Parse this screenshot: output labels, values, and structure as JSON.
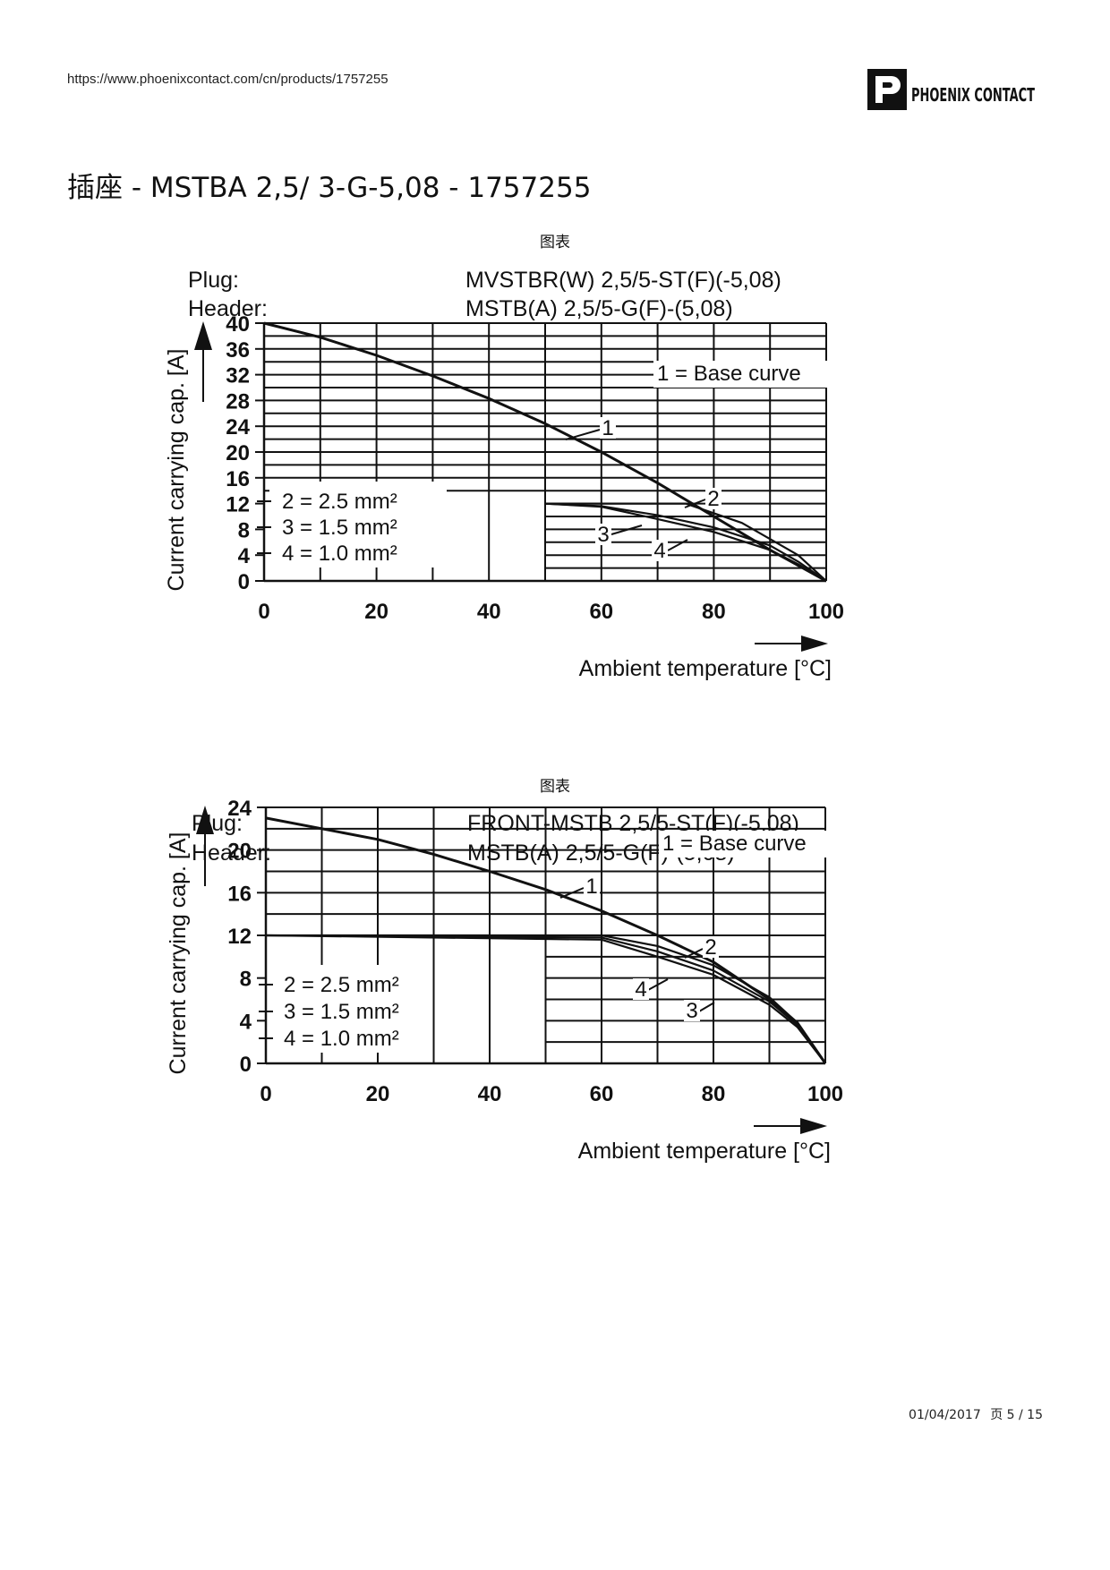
{
  "header": {
    "url": "https://www.phoenixcontact.com/cn/products/1757255",
    "logo_text": "PHOENIX CONTACT"
  },
  "page": {
    "title": "插座 - MSTBA 2,5/ 3-G-5,08 - 1757255"
  },
  "footer": {
    "date": "01/04/2017",
    "page_label": "页 5 / 15"
  },
  "chart_data": [
    {
      "type": "line",
      "figure_label": "图表",
      "plug_label": "Plug:",
      "plug_value": "MVSTBR(W) 2,5/5-ST(F)(-5,08)",
      "header_label": "Header:",
      "header_value": "MSTB(A) 2,5/5-G(F)-(5,08)",
      "xlabel": "Ambient temperature [°C]",
      "ylabel": "Current carrying cap. [A]",
      "xlim": [
        0,
        100
      ],
      "ylim": [
        0,
        40
      ],
      "x_ticks": [
        "0",
        "20",
        "40",
        "60",
        "80",
        "100"
      ],
      "y_ticks": [
        "0",
        "4",
        "8",
        "12",
        "16",
        "20",
        "24",
        "28",
        "32",
        "36",
        "40"
      ],
      "legend_base": "1 = Base curve",
      "legend": [
        "2 = 2.5 mm²",
        "3 = 1.5 mm²",
        "4 = 1.0 mm²"
      ],
      "series": [
        {
          "name": "1",
          "x": [
            0,
            10,
            20,
            30,
            40,
            50,
            60,
            70,
            80,
            90,
            100
          ],
          "y": [
            40,
            37.8,
            35,
            31.8,
            28.3,
            24.4,
            20,
            15.2,
            10,
            4.8,
            0
          ]
        },
        {
          "name": "2",
          "x": [
            50,
            60,
            75,
            85,
            95,
            100
          ],
          "y": [
            12,
            12,
            12,
            9,
            4,
            0
          ]
        },
        {
          "name": "3",
          "x": [
            50,
            60,
            70,
            80,
            90,
            95,
            100
          ],
          "y": [
            12,
            11.6,
            10.2,
            8.3,
            5.5,
            3,
            0
          ]
        },
        {
          "name": "4",
          "x": [
            50,
            60,
            70,
            80,
            90,
            95,
            100
          ],
          "y": [
            12,
            11.5,
            9.6,
            7.6,
            4.8,
            2.6,
            0
          ]
        }
      ],
      "curve_labels": [
        "1",
        "2",
        "3",
        "4"
      ]
    },
    {
      "type": "line",
      "figure_label": "图表",
      "plug_label": "Plug:",
      "plug_value": "FRONT-MSTB 2,5/5-ST(F)(-5,08)",
      "header_label": "Header:",
      "header_value": "MSTB(A) 2,5/5-G(F)-(5,08)",
      "xlabel": "Ambient temperature [°C]",
      "ylabel": "Current carrying cap. [A]",
      "xlim": [
        0,
        100
      ],
      "ylim": [
        0,
        24
      ],
      "x_ticks": [
        "0",
        "20",
        "40",
        "60",
        "80",
        "100"
      ],
      "y_ticks": [
        "0",
        "4",
        "8",
        "12",
        "16",
        "20",
        "24"
      ],
      "legend_base": "1 = Base curve",
      "legend": [
        "2 = 2.5 mm²",
        "3 = 1.5 mm²",
        "4 = 1.0 mm²"
      ],
      "series": [
        {
          "name": "1",
          "x": [
            0,
            10,
            20,
            30,
            40,
            50,
            60,
            70,
            80,
            90,
            95,
            100
          ],
          "y": [
            23,
            22,
            21,
            19.6,
            18,
            16.3,
            14.3,
            12,
            9.5,
            6,
            3.8,
            0
          ]
        },
        {
          "name": "2",
          "x": [
            0,
            60,
            70,
            80,
            90,
            95,
            100
          ],
          "y": [
            12,
            12,
            11,
            9.2,
            6.2,
            3.8,
            0
          ]
        },
        {
          "name": "3",
          "x": [
            0,
            60,
            70,
            80,
            90,
            95,
            100
          ],
          "y": [
            12,
            11.6,
            10,
            8.3,
            5.5,
            3.4,
            0
          ]
        },
        {
          "name": "4",
          "x": [
            0,
            60,
            70,
            80,
            90,
            95,
            100
          ],
          "y": [
            12,
            11.8,
            10.5,
            8.7,
            5.8,
            3.6,
            0
          ]
        }
      ],
      "curve_labels": [
        "1",
        "2",
        "3",
        "4"
      ]
    }
  ]
}
